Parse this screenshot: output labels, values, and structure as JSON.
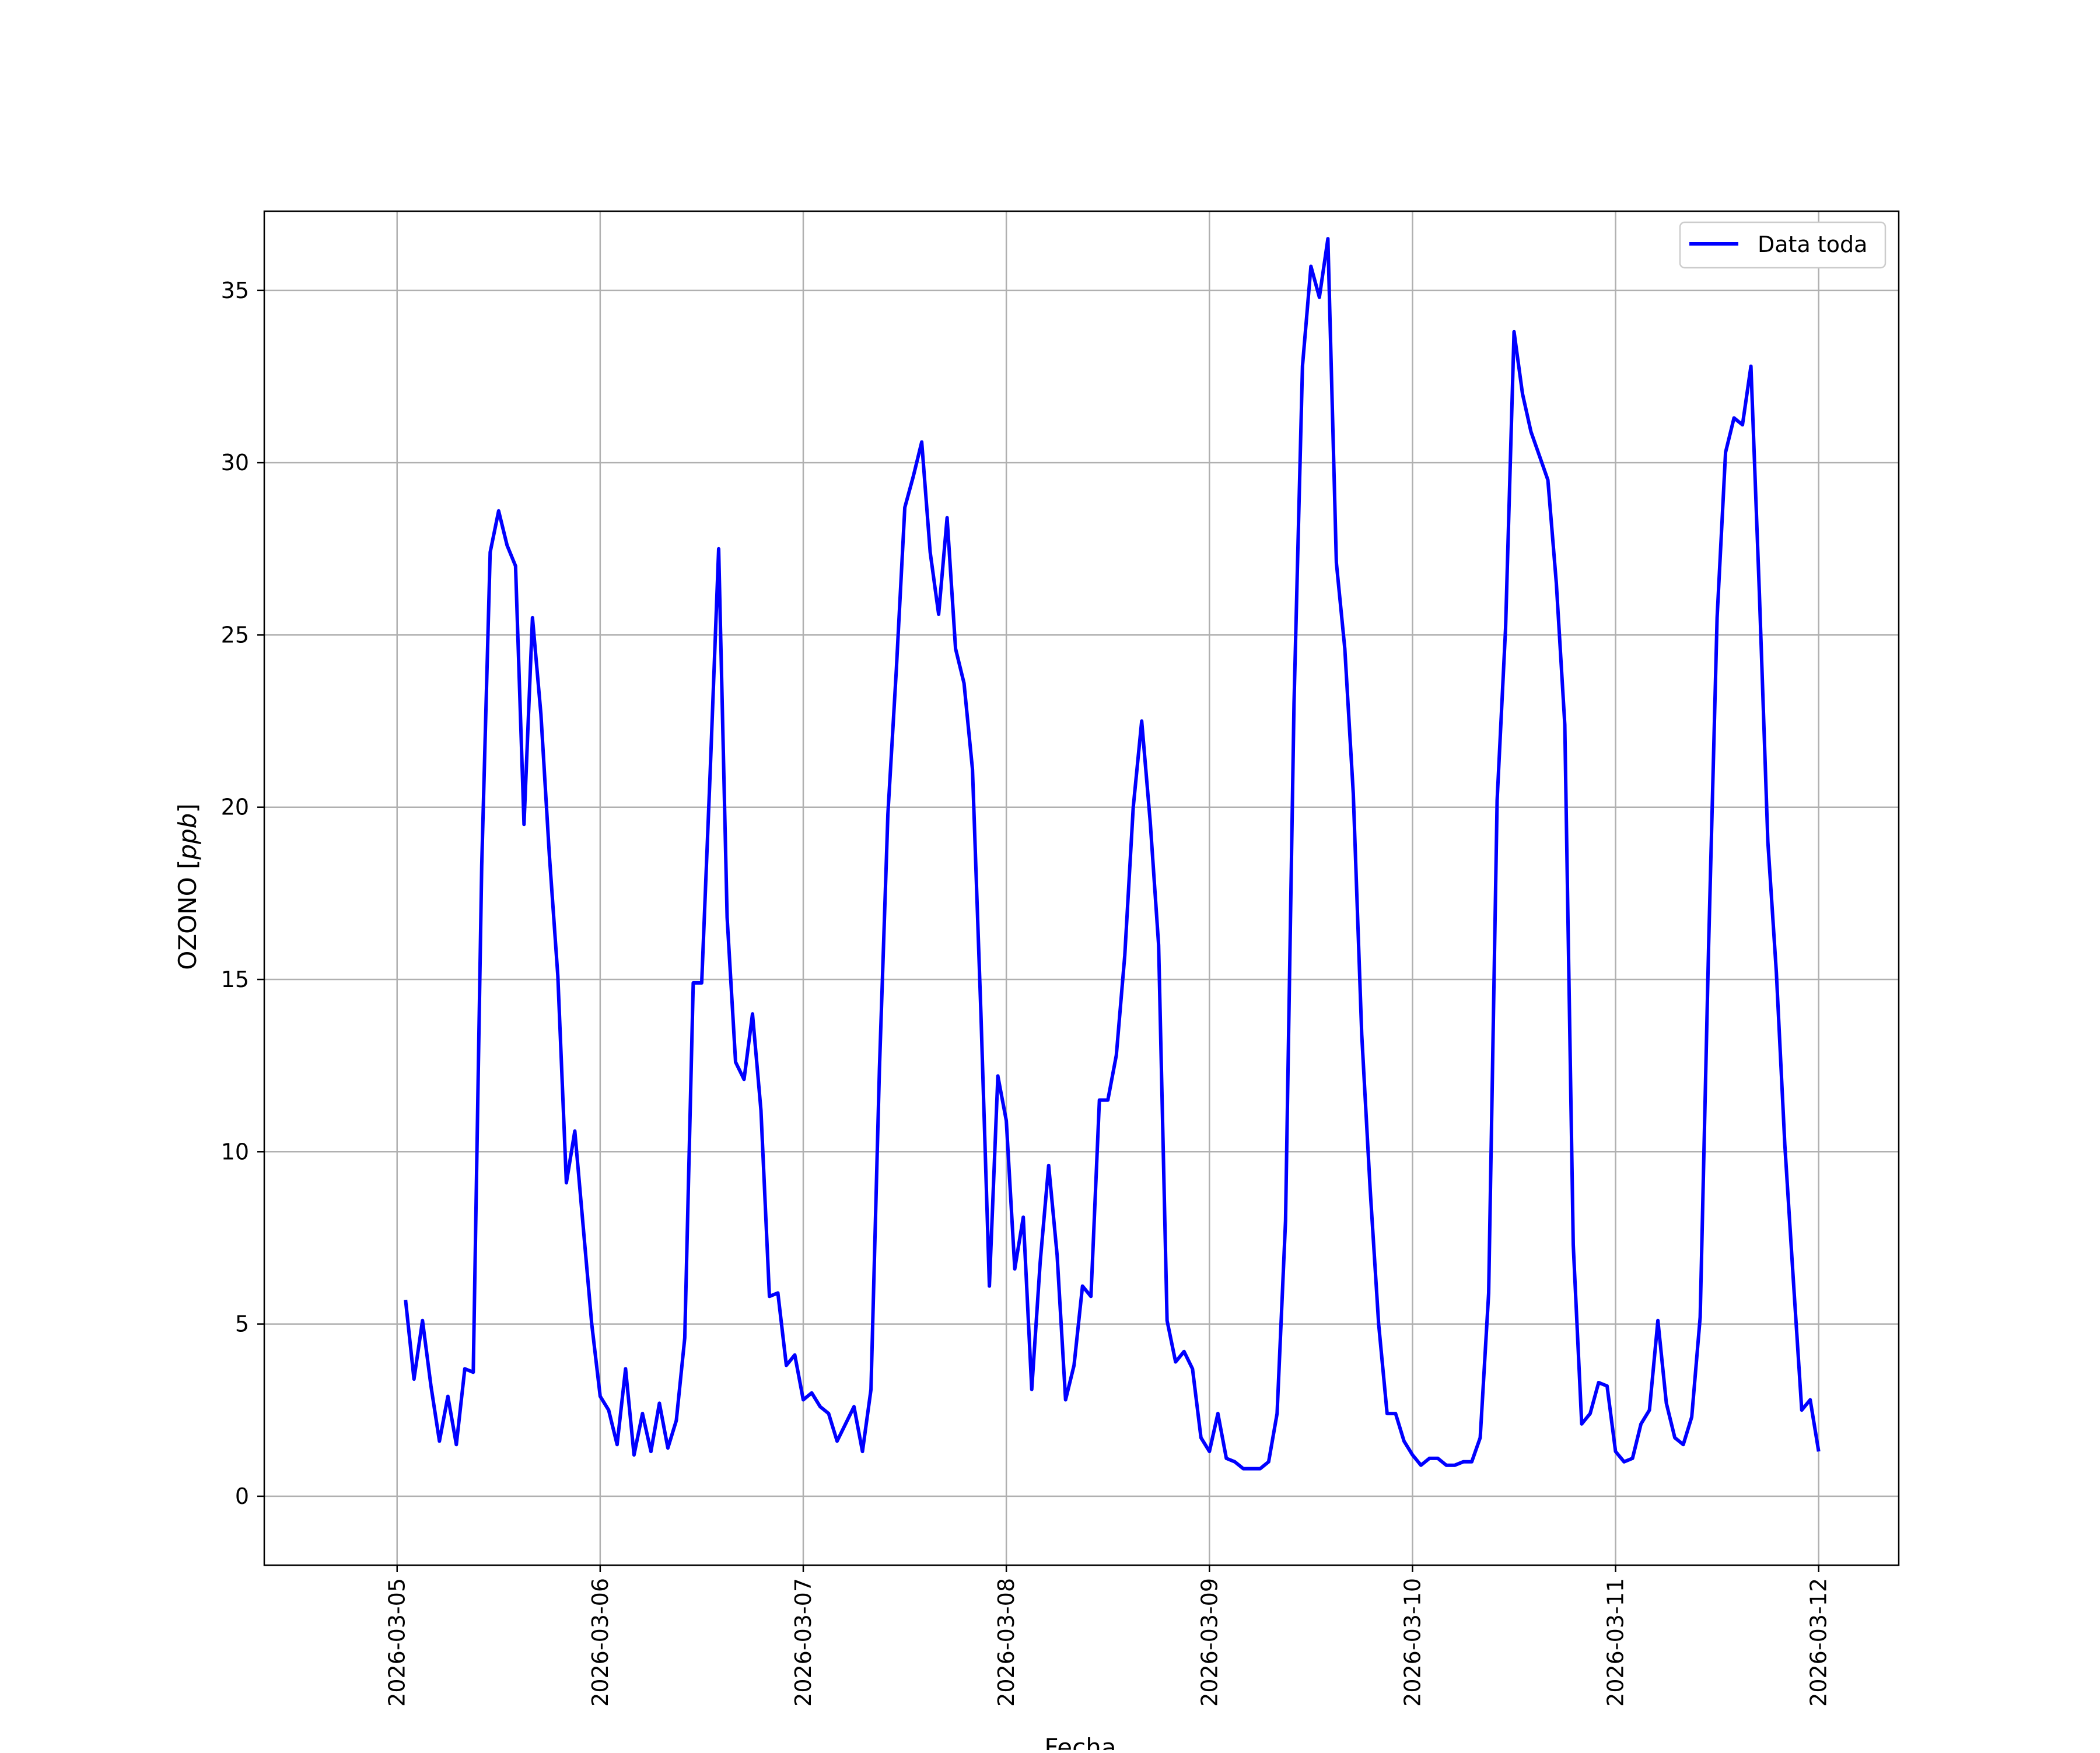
{
  "chart_data": {
    "type": "line",
    "title": "",
    "xlabel": "Fecha",
    "ylabel": "OZONO [ppb]",
    "ylabel_plain": "OZONO [",
    "ylabel_italic": "ppb",
    "ylabel_close": "]",
    "x_start": "2026-03-05 01:00",
    "x_end": "2026-03-12 00:00",
    "x_step_hours": 1,
    "xlim": [
      "2026-03-04 08:18",
      "2026-03-12 09:28"
    ],
    "ylim": [
      -2.0,
      37.3
    ],
    "x_ticks": [
      "2026-03-05",
      "2026-03-06",
      "2026-03-07",
      "2026-03-08",
      "2026-03-09",
      "2026-03-10",
      "2026-03-11",
      "2026-03-12"
    ],
    "y_ticks": [
      0,
      5,
      10,
      15,
      20,
      25,
      30,
      35
    ],
    "y_tick_labels": [
      "0",
      "5",
      "10",
      "15",
      "20",
      "25",
      "30",
      "35"
    ],
    "grid": true,
    "legend_position": "upper right",
    "series": [
      {
        "name": "Data toda",
        "color": "#0000ff",
        "values": [
          5.7,
          3.4,
          5.1,
          3.2,
          1.6,
          2.9,
          1.5,
          3.7,
          3.6,
          18.3,
          27.4,
          28.6,
          27.6,
          27.0,
          19.5,
          25.5,
          22.7,
          18.6,
          15.1,
          9.1,
          10.6,
          7.8,
          5.0,
          2.9,
          2.5,
          1.5,
          3.7,
          1.2,
          2.4,
          1.3,
          2.7,
          1.4,
          2.2,
          4.6,
          14.9,
          14.9,
          21.0,
          27.5,
          16.8,
          12.6,
          12.1,
          14.0,
          11.2,
          5.8,
          5.9,
          3.8,
          4.1,
          2.8,
          3.0,
          2.6,
          2.4,
          1.6,
          2.1,
          2.6,
          1.3,
          3.1,
          12.4,
          19.8,
          24.0,
          28.7,
          29.6,
          30.6,
          27.4,
          25.6,
          28.4,
          24.6,
          23.6,
          21.1,
          14.0,
          6.1,
          12.2,
          10.9,
          6.6,
          8.1,
          3.1,
          6.8,
          9.6,
          7.0,
          2.8,
          3.8,
          6.1,
          5.8,
          11.5,
          11.5,
          12.8,
          15.7,
          20.0,
          22.5,
          19.6,
          16.0,
          5.1,
          3.9,
          4.2,
          3.7,
          1.7,
          1.3,
          2.4,
          1.1,
          1.0,
          0.8,
          0.8,
          0.8,
          1.0,
          2.4,
          8.0,
          23.0,
          32.8,
          35.7,
          34.8,
          36.5,
          27.1,
          24.6,
          20.4,
          13.4,
          8.9,
          5.0,
          2.4,
          2.4,
          1.6,
          1.2,
          0.9,
          1.1,
          1.1,
          0.9,
          0.9,
          1.0,
          1.0,
          1.7,
          5.9,
          20.2,
          25.2,
          33.8,
          32.0,
          30.9,
          30.2,
          29.5,
          26.5,
          22.4,
          7.3,
          2.1,
          2.4,
          3.3,
          3.2,
          1.3,
          1.0,
          1.1,
          2.1,
          2.5,
          5.1,
          2.7,
          1.7,
          1.5,
          2.3,
          5.2,
          16.0,
          25.5,
          30.3,
          31.3,
          31.1,
          32.8,
          26.2,
          19.0,
          15.2,
          10.2,
          6.3,
          2.5,
          2.8,
          1.3
        ]
      }
    ]
  }
}
